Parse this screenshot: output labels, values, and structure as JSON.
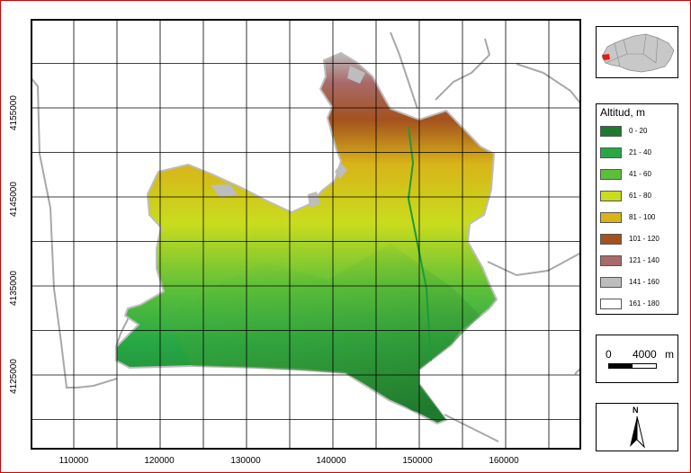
{
  "map": {
    "x_ticks": [
      "110000",
      "120000",
      "130000",
      "140000",
      "150000",
      "160000"
    ],
    "y_ticks": [
      "4155000",
      "4145000",
      "4135000",
      "4125000"
    ],
    "colors": {
      "frame": "#d00000",
      "grid": "#000000",
      "roads": "#a8a8a8"
    }
  },
  "legend": {
    "title": "Altitud, m",
    "items": [
      {
        "label": "0 - 20",
        "color": "#1e7a2e"
      },
      {
        "label": "21 - 40",
        "color": "#27a845"
      },
      {
        "label": "41 - 60",
        "color": "#5cbf3a"
      },
      {
        "label": "61 - 80",
        "color": "#c9dc1e"
      },
      {
        "label": "81 - 100",
        "color": "#d8b419"
      },
      {
        "label": "101 - 120",
        "color": "#a4521e"
      },
      {
        "label": "121 - 140",
        "color": "#a86a6a"
      },
      {
        "label": "141 - 160",
        "color": "#bdbdbd"
      },
      {
        "label": "161 - 180",
        "color": "#ffffff"
      }
    ]
  },
  "scalebar": {
    "zero": "0",
    "distance": "4000",
    "unit": "m"
  },
  "north_arrow": {
    "letter": "N",
    "icon": "north-arrow-icon"
  },
  "locator": {
    "icon": "andalusia-locator-map-icon",
    "highlight_color": "#e21b1b"
  }
}
